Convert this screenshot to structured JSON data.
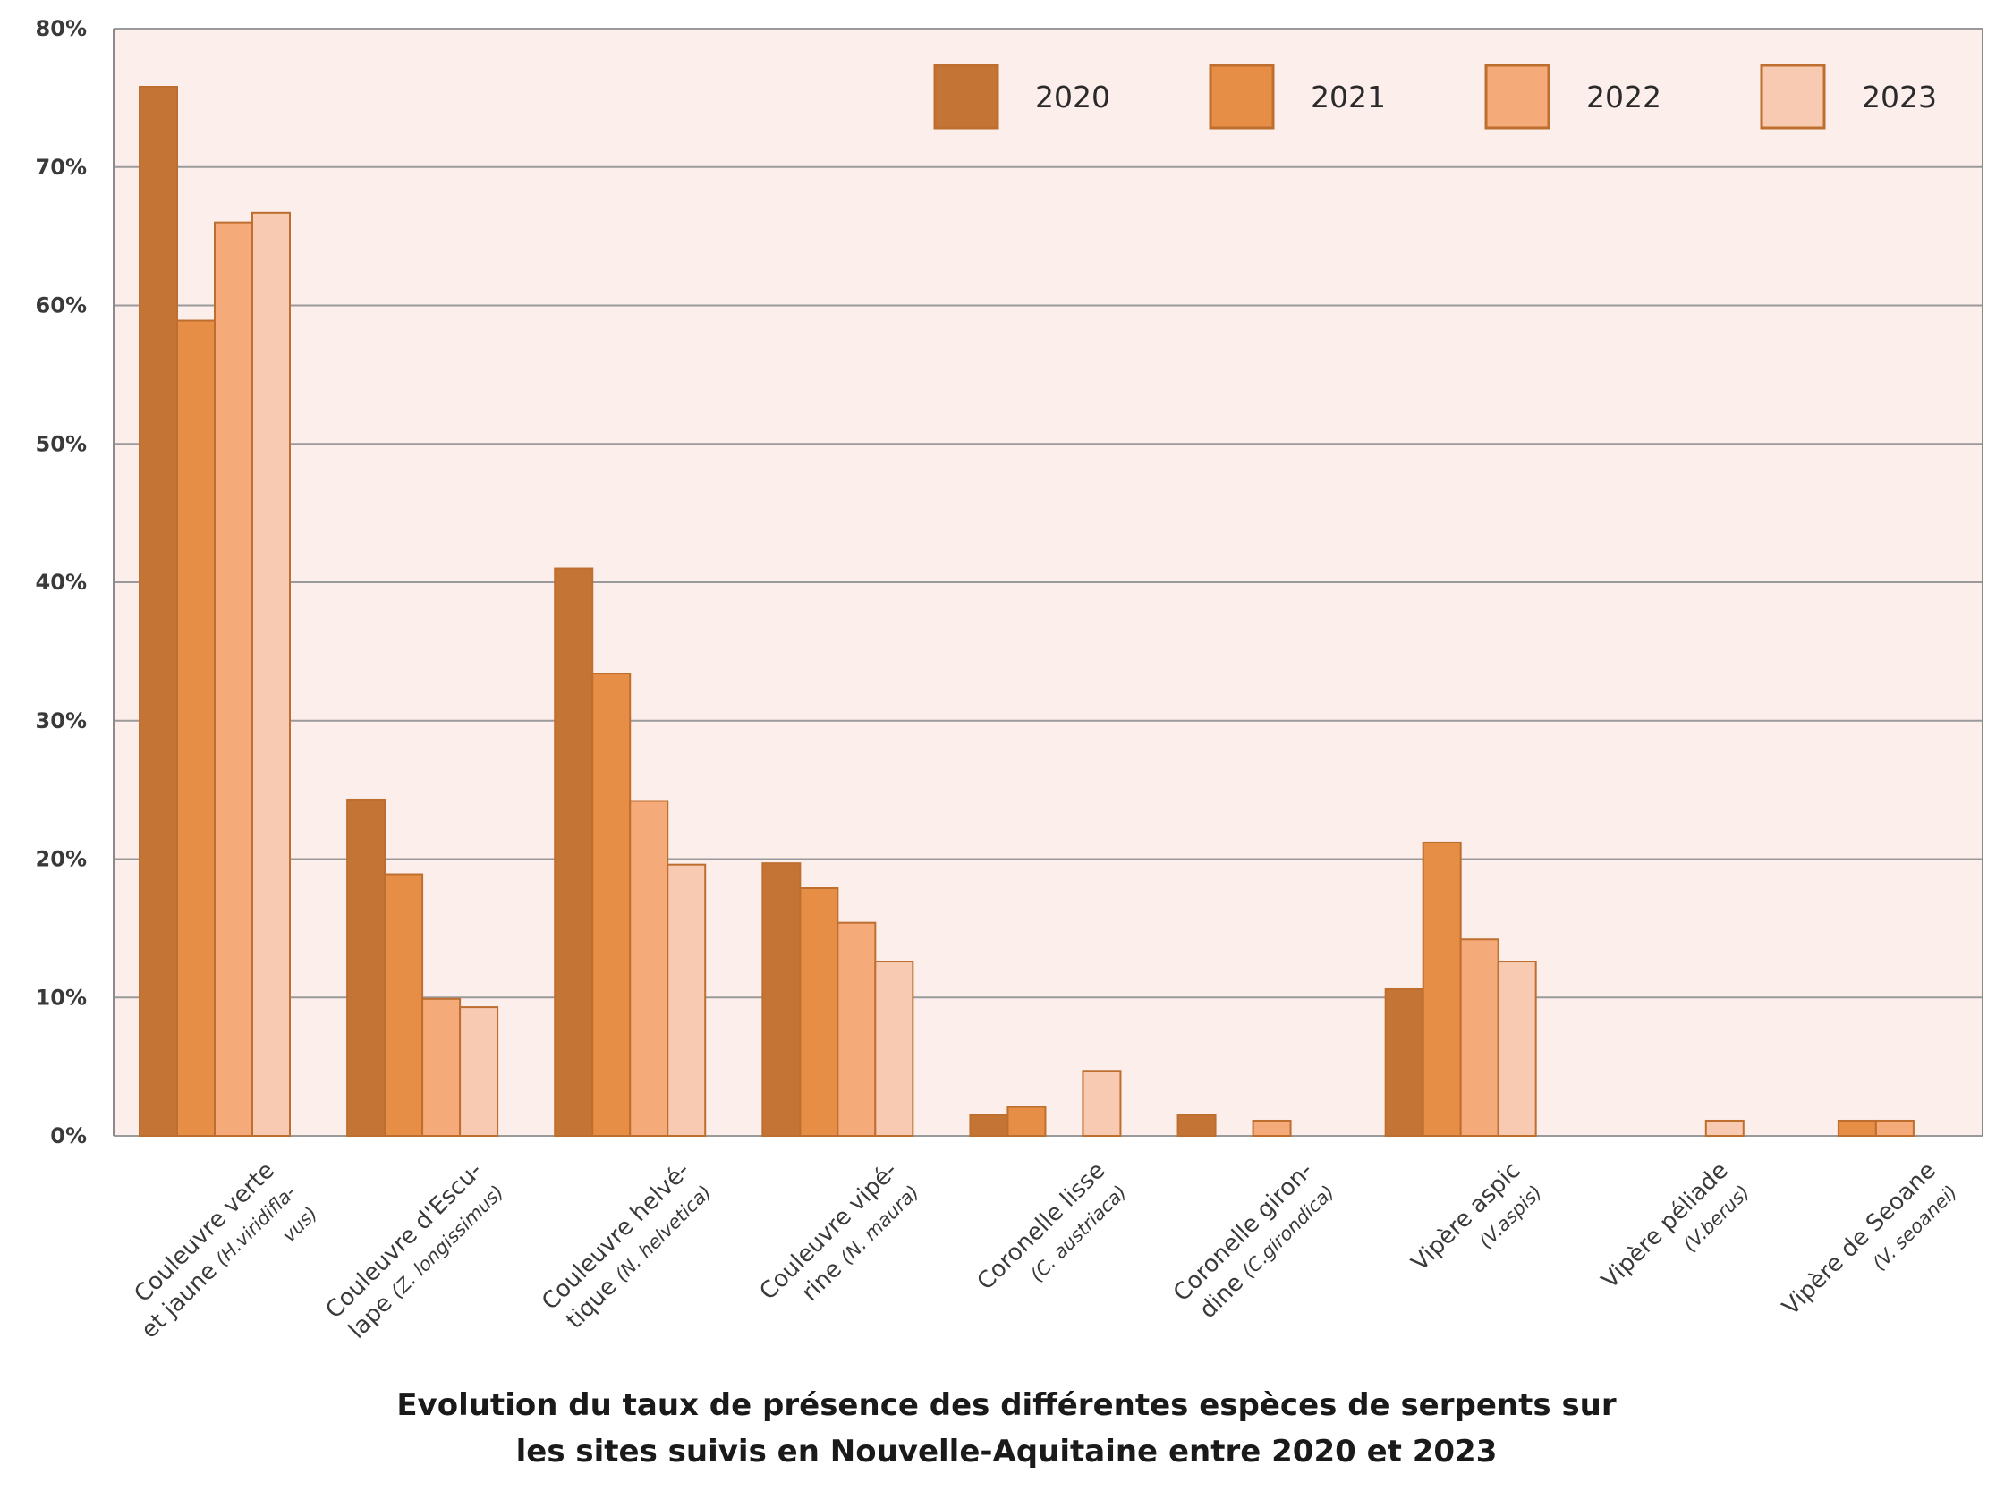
{
  "chart_data": {
    "type": "bar",
    "title": "Evolution du taux de présence des différentes espèces de serpents sur les sites suivis en Nouvelle-Aquitaine entre 2020 et 2023",
    "title_lines": [
      "Evolution du taux de présence des différentes espèces de serpents sur",
      "les sites suivis en Nouvelle-Aquitaine entre 2020 et 2023"
    ],
    "xlabel": "",
    "ylabel": "",
    "ylim": [
      0,
      80
    ],
    "yticks": [
      0,
      10,
      20,
      30,
      40,
      50,
      60,
      70,
      80
    ],
    "ytick_labels": [
      "0%",
      "10%",
      "20%",
      "30%",
      "40%",
      "50%",
      "60%",
      "70%",
      "80%"
    ],
    "grid": true,
    "legend_position": "top-right",
    "categories": [
      "Couleuvre verte et jaune (H.viridiflavus)",
      "Couleuvre d'Esculape (Z. longissimus)",
      "Couleuvre helvétique (N. helvetica)",
      "Couleuvre vipérine (N. maura)",
      "Coronelle lisse (C. austriaca)",
      "Coronelle girondine (C.girondica)",
      "Vipère aspic (V.aspis)",
      "Vipère péliade (V.berus)",
      "Vipère de Seoane (V. seoanei)"
    ],
    "category_label_lines": [
      [
        {
          "text": "Couleuvre verte",
          "sci": ""
        },
        {
          "text": "et jaune ",
          "sci": "(H.viridifla-"
        },
        {
          "text": "",
          "sci": "vus)"
        }
      ],
      [
        {
          "text": "Couleuvre d'Escu-",
          "sci": ""
        },
        {
          "text": "lape ",
          "sci": "(Z. longissimus)"
        }
      ],
      [
        {
          "text": "Couleuvre helvé-",
          "sci": ""
        },
        {
          "text": "tique ",
          "sci": "(N. helvetica)"
        }
      ],
      [
        {
          "text": "Couleuvre vipé-",
          "sci": ""
        },
        {
          "text": "rine ",
          "sci": "(N. maura)"
        }
      ],
      [
        {
          "text": "Coronelle lisse",
          "sci": ""
        },
        {
          "text": "",
          "sci": "(C. austriaca)"
        }
      ],
      [
        {
          "text": "Coronelle giron-",
          "sci": ""
        },
        {
          "text": "dine ",
          "sci": "(C.girondica)"
        }
      ],
      [
        {
          "text": "Vipère aspic",
          "sci": ""
        },
        {
          "text": "",
          "sci": "(V.aspis)"
        }
      ],
      [
        {
          "text": "Vipère péliade",
          "sci": ""
        },
        {
          "text": "",
          "sci": "(V.berus)"
        }
      ],
      [
        {
          "text": "Vipère de Seoane",
          "sci": ""
        },
        {
          "text": "",
          "sci": "(V. seoanei)"
        }
      ]
    ],
    "series": [
      {
        "name": "2020",
        "color": "#C47535",
        "values": [
          75.8,
          24.3,
          41.0,
          19.7,
          1.5,
          1.5,
          10.6,
          0,
          0
        ]
      },
      {
        "name": "2021",
        "color": "#E68E45",
        "values": [
          58.9,
          18.9,
          33.4,
          17.9,
          2.1,
          0,
          21.2,
          0,
          1.1
        ]
      },
      {
        "name": "2022",
        "color": "#F5AA7A",
        "values": [
          66.0,
          9.9,
          24.2,
          15.4,
          0,
          1.1,
          14.2,
          0,
          1.1
        ]
      },
      {
        "name": "2023",
        "color": "#F8CAB2",
        "values": [
          66.7,
          9.3,
          19.6,
          12.6,
          4.7,
          0,
          12.6,
          1.1,
          0
        ]
      }
    ],
    "colors": {
      "plot_background": "#FCEEEA",
      "grid": "#9A9A9A",
      "bar_outline": "#BE6E2E"
    }
  }
}
